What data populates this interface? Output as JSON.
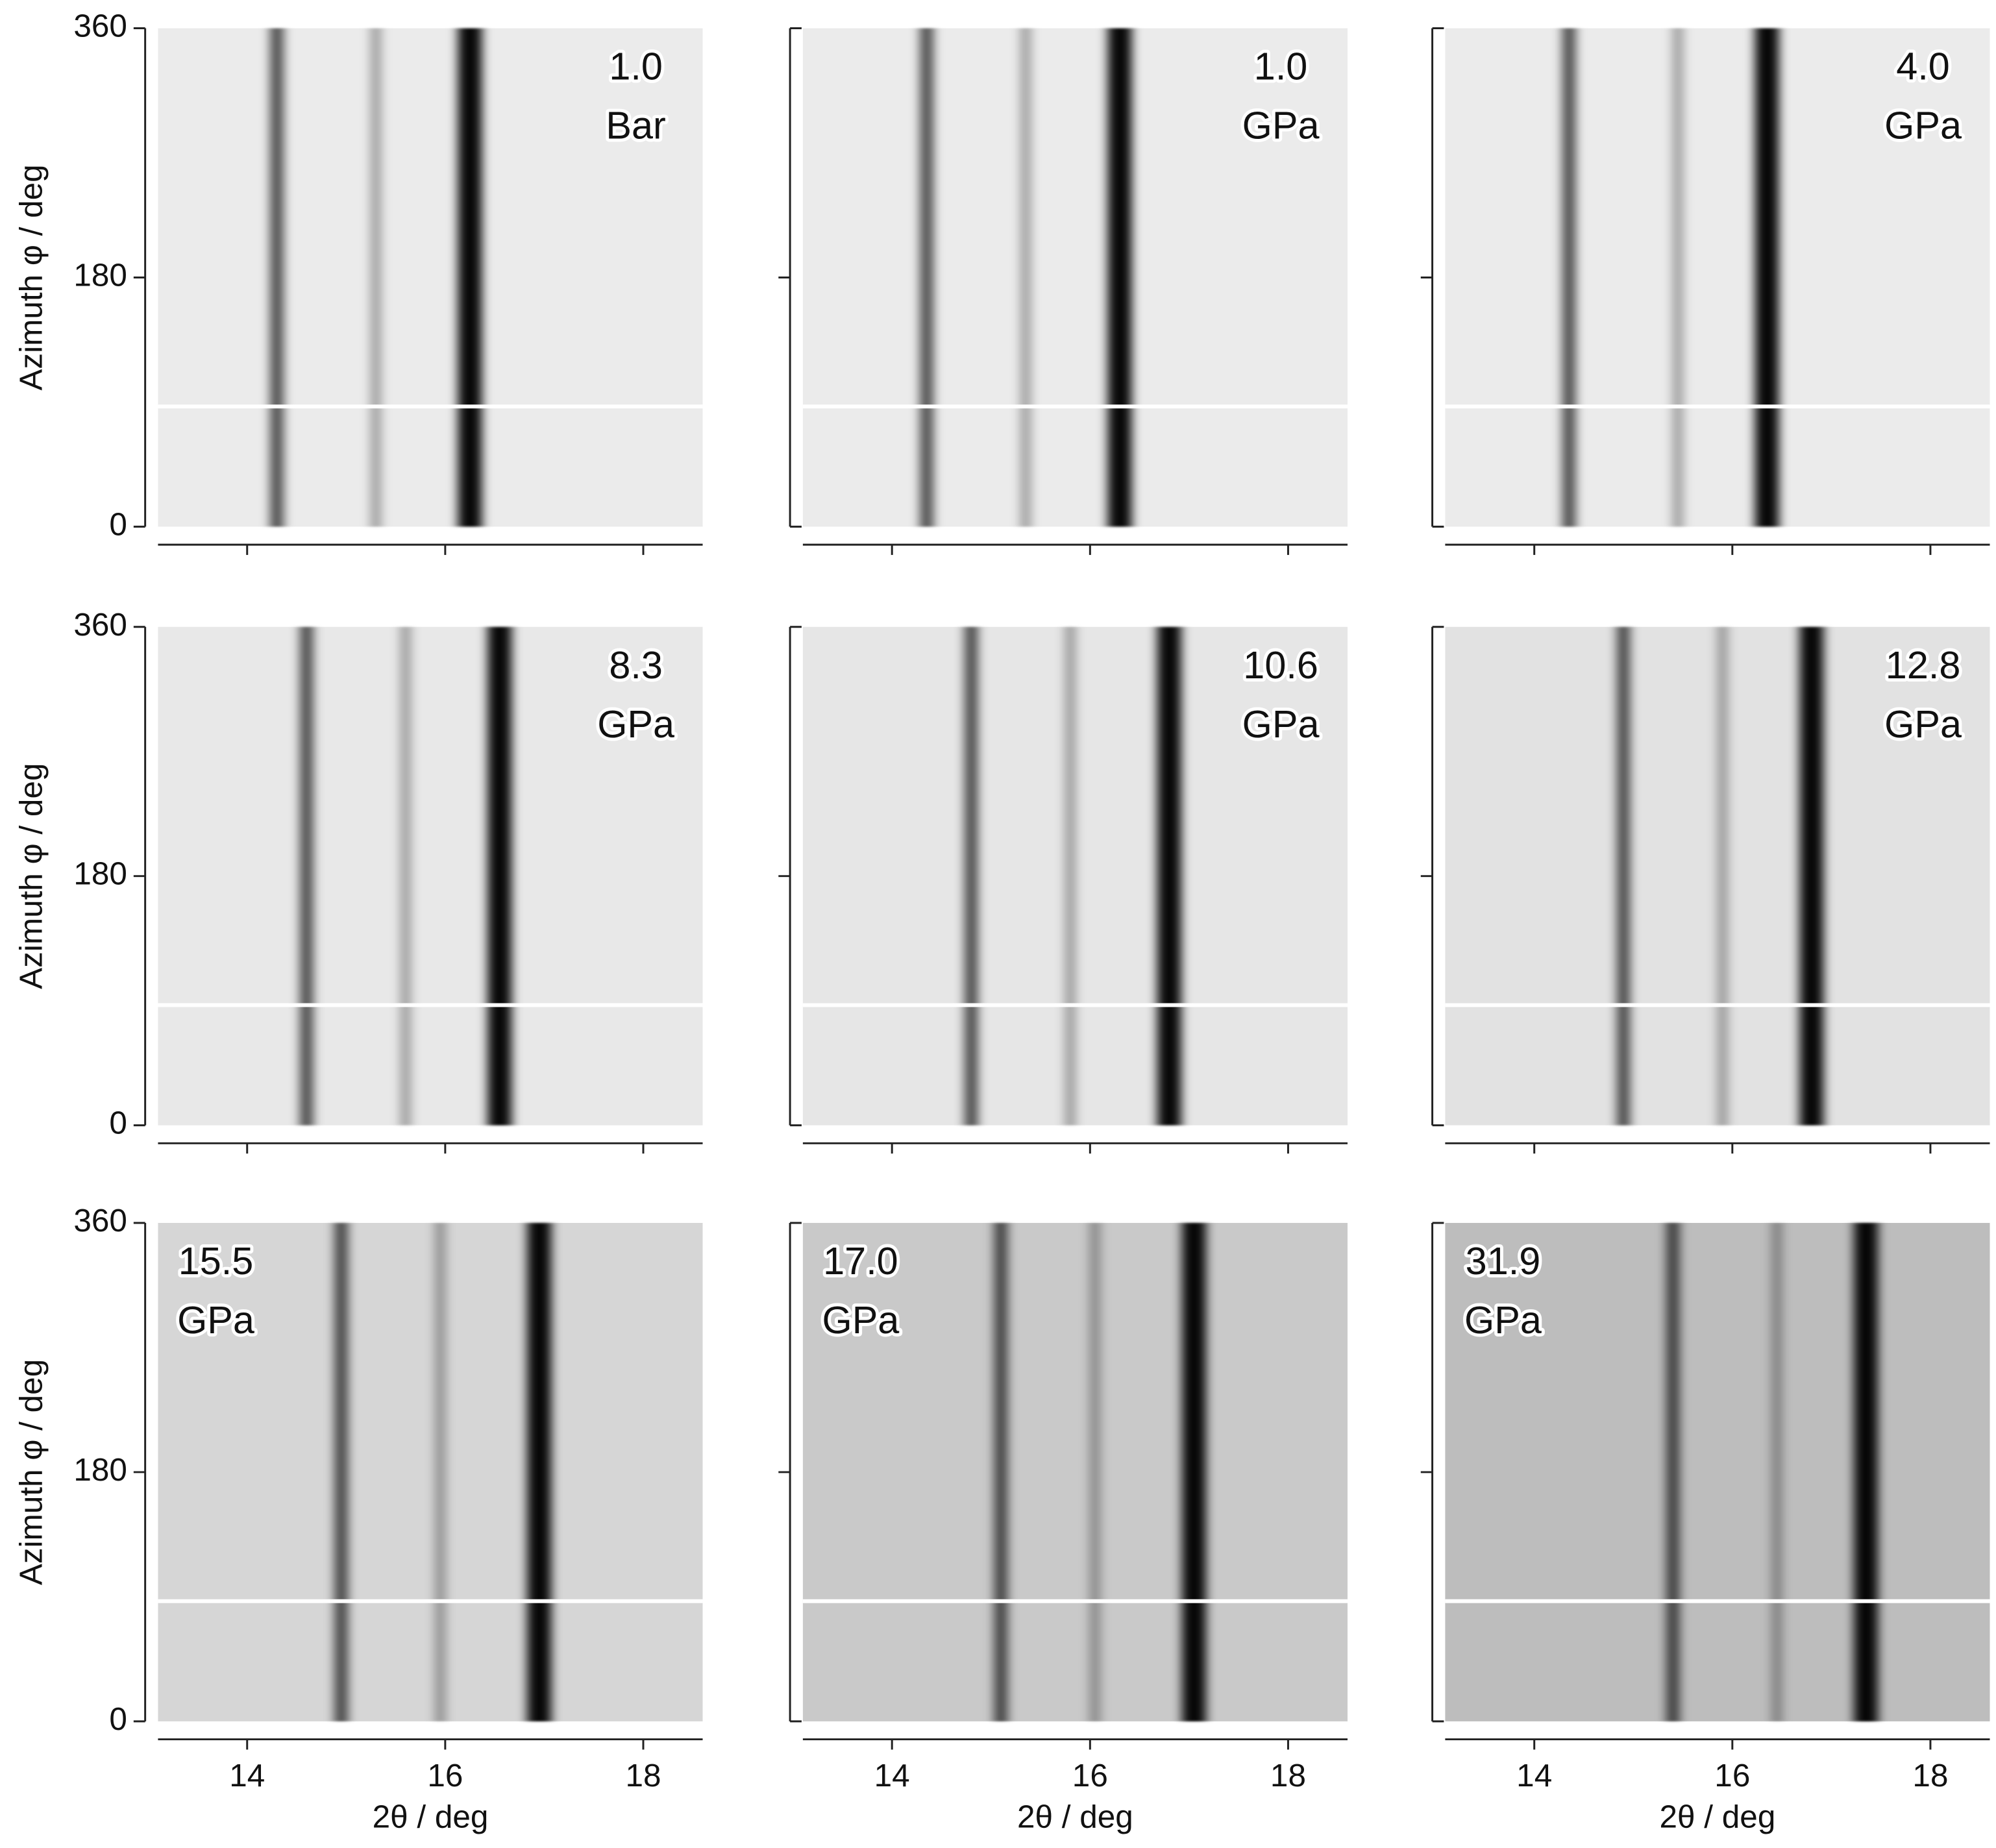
{
  "chart_data": [
    {
      "type": "image",
      "label": [
        "1.0",
        "Bar"
      ],
      "label_corner": "upper right",
      "background": "#ebebeb",
      "peaks": [
        14.3,
        15.3,
        16.25
      ],
      "xlim": [
        13.1,
        18.6
      ],
      "xticks": [
        14,
        16,
        18
      ],
      "ylim": [
        0,
        360
      ],
      "yticks": [
        0,
        180,
        360
      ],
      "x_tick_labels": false,
      "y_tick_labels": true,
      "ylabel": "Azimuth φ / deg"
    },
    {
      "type": "image",
      "label": [
        "1.0",
        "GPa"
      ],
      "label_corner": "upper right",
      "background": "#ebebeb",
      "peaks": [
        14.35,
        15.35,
        16.3
      ],
      "xlim": [
        13.1,
        18.6
      ],
      "xticks": [
        14,
        16,
        18
      ],
      "ylim": [
        0,
        360
      ],
      "yticks": [
        0,
        180,
        360
      ],
      "x_tick_labels": false,
      "y_tick_labels": false
    },
    {
      "type": "image",
      "label": [
        "4.0",
        "GPa"
      ],
      "label_corner": "upper right",
      "background": "#ebebeb",
      "peaks": [
        14.35,
        15.45,
        16.35
      ],
      "xlim": [
        13.1,
        18.6
      ],
      "xticks": [
        14,
        16,
        18
      ],
      "ylim": [
        0,
        360
      ],
      "yticks": [
        0,
        180,
        360
      ],
      "x_tick_labels": false,
      "y_tick_labels": false
    },
    {
      "type": "image",
      "label": [
        "8.3",
        "GPa"
      ],
      "label_corner": "upper right",
      "background": "#e8e8e8",
      "peaks": [
        14.6,
        15.6,
        16.55
      ],
      "xlim": [
        13.1,
        18.6
      ],
      "xticks": [
        14,
        16,
        18
      ],
      "ylim": [
        0,
        360
      ],
      "yticks": [
        0,
        180,
        360
      ],
      "x_tick_labels": false,
      "y_tick_labels": true,
      "ylabel": "Azimuth φ / deg"
    },
    {
      "type": "image",
      "label": [
        "10.6",
        "GPa"
      ],
      "label_corner": "upper right",
      "background": "#e6e6e6",
      "peaks": [
        14.8,
        15.8,
        16.8
      ],
      "xlim": [
        13.1,
        18.6
      ],
      "xticks": [
        14,
        16,
        18
      ],
      "ylim": [
        0,
        360
      ],
      "yticks": [
        0,
        180,
        360
      ],
      "x_tick_labels": false,
      "y_tick_labels": false
    },
    {
      "type": "image",
      "label": [
        "12.8",
        "GPa"
      ],
      "label_corner": "upper right",
      "background": "#e2e2e2",
      "peaks": [
        14.9,
        15.9,
        16.8
      ],
      "xlim": [
        13.1,
        18.6
      ],
      "xticks": [
        14,
        16,
        18
      ],
      "ylim": [
        0,
        360
      ],
      "yticks": [
        0,
        180,
        360
      ],
      "x_tick_labels": false,
      "y_tick_labels": false
    },
    {
      "type": "image",
      "label": [
        "15.5",
        "GPa"
      ],
      "label_corner": "upper left",
      "background": "#d6d6d6",
      "peaks": [
        14.95,
        15.95,
        16.95
      ],
      "xlim": [
        13.1,
        18.6
      ],
      "xticks": [
        14,
        16,
        18
      ],
      "ylim": [
        0,
        360
      ],
      "yticks": [
        0,
        180,
        360
      ],
      "x_tick_labels": true,
      "y_tick_labels": true,
      "ylabel": "Azimuth φ / deg",
      "xlabel": "2θ / deg"
    },
    {
      "type": "image",
      "label": [
        "17.0",
        "GPa"
      ],
      "label_corner": "upper left",
      "background": "#c9c9c9",
      "peaks": [
        15.1,
        16.05,
        17.05
      ],
      "xlim": [
        13.1,
        18.6
      ],
      "xticks": [
        14,
        16,
        18
      ],
      "ylim": [
        0,
        360
      ],
      "yticks": [
        0,
        180,
        360
      ],
      "x_tick_labels": true,
      "y_tick_labels": false,
      "xlabel": "2θ / deg"
    },
    {
      "type": "image",
      "label": [
        "31.9",
        "GPa"
      ],
      "label_corner": "upper left",
      "background": "#bdbdbd",
      "peaks": [
        15.4,
        16.45,
        17.35
      ],
      "xlim": [
        13.1,
        18.6
      ],
      "xticks": [
        14,
        16,
        18
      ],
      "ylim": [
        0,
        360
      ],
      "yticks": [
        0,
        180,
        360
      ],
      "x_tick_labels": true,
      "y_tick_labels": false,
      "xlabel": "2θ / deg"
    }
  ]
}
